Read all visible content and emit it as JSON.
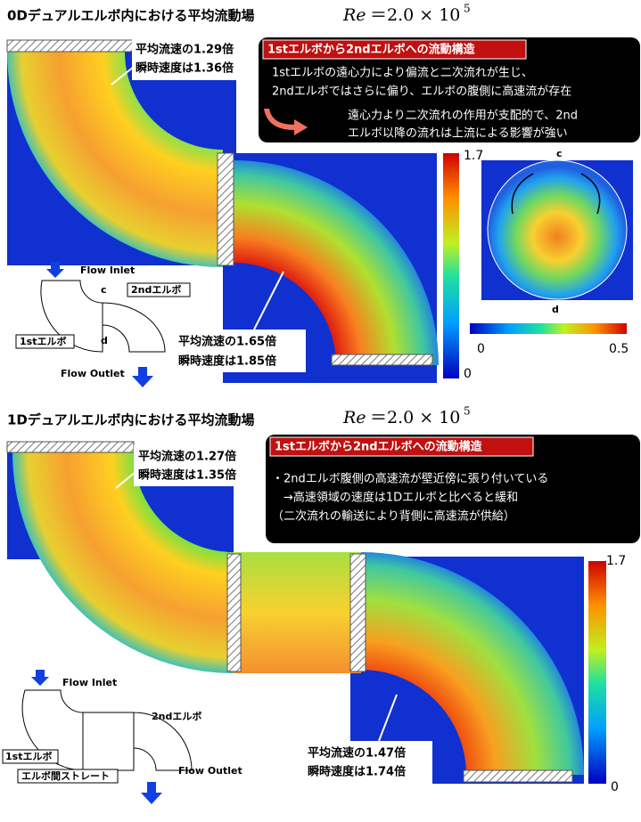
{
  "panels": [
    {
      "title": "0Dデュアルエルボ内における平均流動場",
      "re_symbol": "Re",
      "re_value": "＝2.0 × 10",
      "re_exponent": "5",
      "callout_upper": [
        "平均流速の1.29倍",
        "瞬時速度は1.36倍"
      ],
      "callout_lower": [
        "平均流速の1.65倍",
        "瞬時速度は1.85倍"
      ],
      "info_title": "1stエルボから2ndエルボへの流動構造",
      "info_lines": [
        "1stエルボの遠心力により偏流と二次流れが生じ、",
        "2ndエルボではさらに偏り、エルボの腹側に高速流が存在",
        "遠心力より二次流れの作用が支配的で、2nd",
        "エルボ以降の流れは上流による影響が強い"
      ],
      "colorbar_ticks": [
        1.7,
        0
      ],
      "section": {
        "top": "c",
        "bottom": "d",
        "scale_ticks": [
          0,
          0.5
        ]
      },
      "schematic": {
        "inlet": "Flow Inlet",
        "outlet": "Flow Outlet",
        "second": "2ndエルボ",
        "first": "1stエルボ",
        "c": "c",
        "d": "d"
      }
    },
    {
      "title": "1Dデュアルエルボ内における平均流動場",
      "re_symbol": "Re",
      "re_value": "＝2.0 × 10",
      "re_exponent": "5",
      "callout_upper": [
        "平均流速の1.27倍",
        "瞬時速度は1.35倍"
      ],
      "callout_lower": [
        "平均流速の1.47倍",
        "瞬時速度は1.74倍"
      ],
      "info_title": "1stエルボから2ndエルボへの流動構造",
      "info_lines": [
        "・2ndエルボ腹側の高速流が壁近傍に張り付いている",
        "→高速領域の速度は1Dエルボと比べると緩和",
        "（二次流れの輸送により背側に高速流が供給）"
      ],
      "colorbar_ticks": [
        1.7,
        0
      ],
      "schematic": {
        "inlet": "Flow Inlet",
        "outlet": "Flow Outlet",
        "second": "2ndエルボ",
        "first": "1stエルボ",
        "straight": "エルボ間ストレート"
      }
    }
  ]
}
